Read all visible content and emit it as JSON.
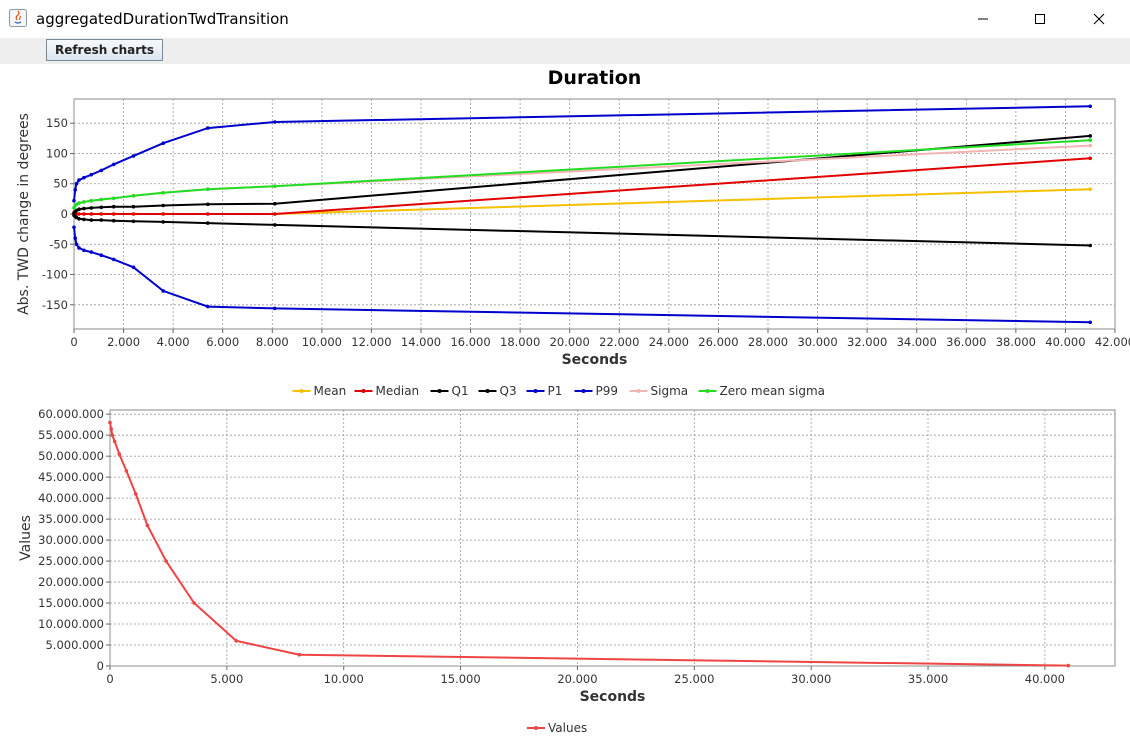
{
  "window": {
    "title": "aggregatedDurationTwdTransition"
  },
  "toolbar": {
    "refresh_label": "Refresh charts"
  },
  "icons": {
    "app": "java-icon",
    "minimize": "minimize-icon",
    "maximize": "maximize-icon",
    "close": "close-icon"
  },
  "chart_data": [
    {
      "type": "line",
      "title": "Duration",
      "xlabel": "Seconds",
      "ylabel": "Abs. TWD change in degrees",
      "xlim": [
        0,
        42000
      ],
      "ylim": [
        -190,
        190
      ],
      "x_ticks": [
        "0",
        "2.000",
        "4.000",
        "6.000",
        "8.000",
        "10.000",
        "12.000",
        "14.000",
        "16.000",
        "18.000",
        "20.000",
        "22.000",
        "24.000",
        "26.000",
        "28.000",
        "30.000",
        "32.000",
        "34.000",
        "36.000",
        "38.000",
        "40.000",
        "42.000"
      ],
      "y_ticks": [
        "-150",
        "-100",
        "-50",
        "0",
        "50",
        "100",
        "150"
      ],
      "grid": true,
      "legend": "bottom",
      "x": [
        0,
        50,
        100,
        200,
        400,
        700,
        1100,
        1600,
        2400,
        3600,
        5400,
        8100,
        41000
      ],
      "series": [
        {
          "name": "Mean",
          "color": "#f5c000",
          "values": [
            0,
            0,
            0,
            0,
            0,
            0,
            0,
            0,
            0,
            0,
            0,
            0,
            41
          ]
        },
        {
          "name": "Median",
          "color": "#e00000",
          "values": [
            0,
            0,
            0,
            0,
            0,
            0,
            0,
            0,
            0,
            0,
            0,
            0,
            92
          ]
        },
        {
          "name": "Q1",
          "color": "#000000",
          "values": [
            -2,
            -4,
            -6,
            -8,
            -9,
            -10,
            -10,
            -11,
            -12,
            -13,
            -15,
            -18,
            -52
          ]
        },
        {
          "name": "Q3",
          "color": "#000000",
          "values": [
            2,
            4,
            6,
            8,
            9,
            10,
            11,
            12,
            12,
            14,
            16,
            17,
            129
          ]
        },
        {
          "name": "P1",
          "color": "#0000cc",
          "values": [
            -22,
            -40,
            -50,
            -56,
            -60,
            -63,
            -68,
            -75,
            -88,
            -127,
            -153,
            -156,
            -179
          ]
        },
        {
          "name": "P99",
          "color": "#0000cc",
          "values": [
            22,
            40,
            50,
            56,
            60,
            65,
            72,
            82,
            96,
            117,
            142,
            152,
            178
          ]
        },
        {
          "name": "Sigma",
          "color": "#f2b4b4",
          "values": [
            10,
            14,
            16,
            18,
            20,
            22,
            24,
            26,
            30,
            35,
            41,
            46,
            113
          ]
        },
        {
          "name": "Zero mean sigma",
          "color": "#22dd22",
          "values": [
            10,
            14,
            16,
            18,
            20,
            22,
            24,
            26,
            30,
            35,
            41,
            46,
            122
          ]
        }
      ]
    },
    {
      "type": "line",
      "title": "",
      "xlabel": "Seconds",
      "ylabel": "Values",
      "xlim": [
        0,
        43000
      ],
      "ylim": [
        0,
        61000000
      ],
      "x_ticks": [
        "0",
        "5.000",
        "10.000",
        "15.000",
        "20.000",
        "25.000",
        "30.000",
        "35.000",
        "40.000"
      ],
      "y_ticks": [
        "0",
        "5.000.000",
        "10.000.000",
        "15.000.000",
        "20.000.000",
        "25.000.000",
        "30.000.000",
        "35.000.000",
        "40.000.000",
        "45.000.000",
        "50.000.000",
        "55.000.000",
        "60.000.000"
      ],
      "grid": true,
      "legend": "bottom",
      "x": [
        0,
        50,
        100,
        200,
        400,
        700,
        1100,
        1600,
        2400,
        3600,
        5400,
        8100,
        41000
      ],
      "series": [
        {
          "name": "Values",
          "color": "#ee4444",
          "values": [
            58000000,
            56500000,
            55000000,
            53500000,
            50500000,
            46500000,
            41000000,
            33500000,
            25000000,
            15000000,
            6000000,
            2700000,
            100000
          ]
        }
      ]
    }
  ]
}
